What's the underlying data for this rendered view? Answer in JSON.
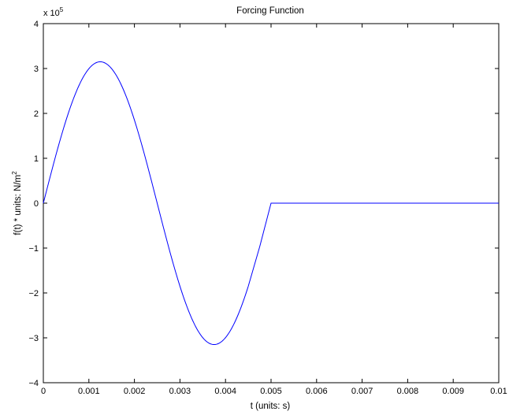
{
  "chart_data": {
    "type": "line",
    "title": "Forcing Function",
    "xlabel": "t (units: s)",
    "ylabel_main": "f(t) * units: N/m",
    "ylabel_sup": "2",
    "y_multiplier_base": "x 10",
    "y_multiplier_exp": "5",
    "xlim": [
      0,
      0.01
    ],
    "ylim": [
      -4,
      4
    ],
    "x_ticks": [
      0,
      0.001,
      0.002,
      0.003,
      0.004,
      0.005,
      0.006,
      0.007,
      0.008,
      0.009,
      0.01
    ],
    "x_tick_labels": [
      "0",
      "0.001",
      "0.002",
      "0.003",
      "0.004",
      "0.005",
      "0.006",
      "0.007",
      "0.008",
      "0.009",
      "0.01"
    ],
    "y_ticks": [
      -4,
      -3,
      -2,
      -1,
      0,
      1,
      2,
      3,
      4
    ],
    "y_tick_labels": [
      "−4",
      "−3",
      "−2",
      "−1",
      "0",
      "1",
      "2",
      "3",
      "4"
    ],
    "grid": false,
    "series": [
      {
        "color": "#0000ff",
        "x": [
          0,
          0.00025,
          0.0005,
          0.00075,
          0.001,
          0.00125,
          0.0015,
          0.00175,
          0.002,
          0.00225,
          0.0025,
          0.00275,
          0.003,
          0.00325,
          0.0035,
          0.00375,
          0.004,
          0.00425,
          0.0045,
          0.00475,
          0.005,
          0.006,
          0.007,
          0.008,
          0.009,
          0.01
        ],
        "y": [
          0,
          0.974,
          1.851,
          2.548,
          2.996,
          3.15,
          2.996,
          2.548,
          1.851,
          0.974,
          0,
          -0.974,
          -1.851,
          -2.548,
          -2.996,
          -3.15,
          -2.996,
          -2.548,
          -1.851,
          -0.974,
          0,
          0,
          0,
          0,
          0,
          0
        ]
      }
    ]
  }
}
